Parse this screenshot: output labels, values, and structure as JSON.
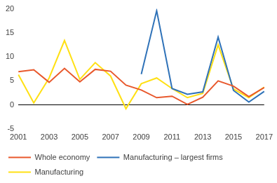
{
  "chart_data": {
    "type": "line",
    "categories": [
      "2001",
      null,
      "2003",
      null,
      "2005",
      null,
      "2007",
      null,
      "2009",
      null,
      "2011",
      null,
      "2013",
      null,
      "2015",
      null,
      "2017"
    ],
    "series": [
      {
        "name": "Whole economy",
        "color": "#e8582c",
        "values": [
          6.9,
          7.3,
          4.7,
          7.6,
          4.8,
          7.4,
          7.0,
          4.1,
          3.1,
          1.5,
          1.8,
          0.1,
          1.6,
          5.0,
          3.9,
          1.7,
          3.6
        ]
      },
      {
        "name": "Manufacturing – largest firms",
        "color": "#2f72b8",
        "values": [
          null,
          null,
          null,
          null,
          null,
          null,
          null,
          null,
          6.4,
          19.6,
          3.4,
          2.2,
          2.7,
          14.1,
          3.0,
          0.6,
          2.8
        ]
      },
      {
        "name": "Manufacturing",
        "color": "#ffe014",
        "values": [
          6.3,
          0.4,
          5.6,
          13.4,
          5.3,
          8.8,
          6.0,
          -0.8,
          4.4,
          5.6,
          3.4,
          1.5,
          2.4,
          12.5,
          3.3,
          1.5,
          3.7
        ]
      }
    ],
    "ylim": [
      -5,
      20
    ],
    "yticks": [
      -5,
      0,
      5,
      10,
      15,
      20
    ],
    "grid": false,
    "legend": "bottom"
  }
}
